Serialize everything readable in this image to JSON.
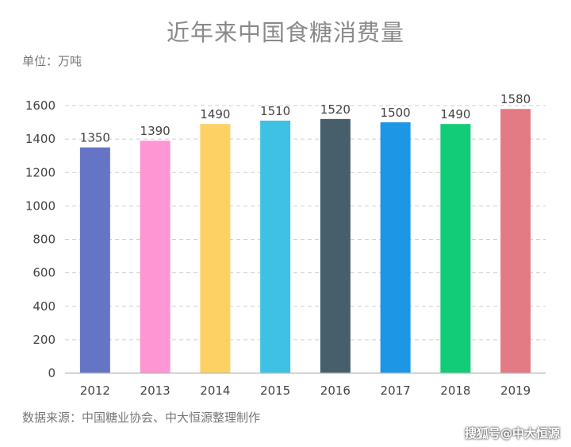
{
  "chart_data": {
    "type": "bar",
    "title": "近年来中国食糖消费量",
    "unit_label": "单位：万吨",
    "categories": [
      "2012",
      "2013",
      "2014",
      "2015",
      "2016",
      "2017",
      "2018",
      "2019"
    ],
    "values": [
      1350,
      1390,
      1490,
      1510,
      1520,
      1500,
      1490,
      1580
    ],
    "colors": [
      "#6574c4",
      "#fd96d2",
      "#fdd163",
      "#3fc1e6",
      "#465f6b",
      "#1e96e6",
      "#12cc77",
      "#e37b85"
    ],
    "ylim": [
      0,
      1600
    ],
    "yticks": [
      0,
      200,
      400,
      600,
      800,
      1000,
      1200,
      1400,
      1600
    ],
    "grid": true,
    "source": "数据来源：中国糖业协会、中大恒源整理制作"
  },
  "watermark": "搜狐号@中大恒源"
}
